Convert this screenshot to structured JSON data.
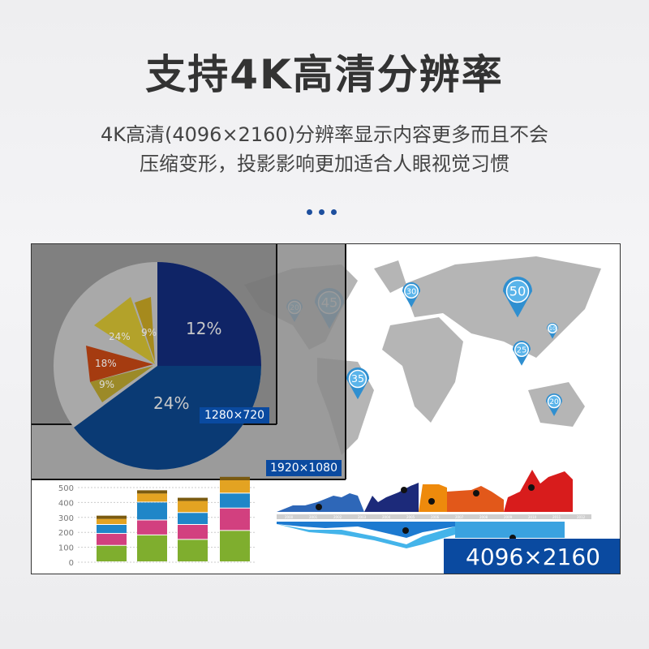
{
  "title": "支持4K高清分辨率",
  "subtitle": [
    "4K高清(4096×2160)分辨率显示内容更多而且不会",
    "压缩变形，投影影响更加适合人眼视觉习惯"
  ],
  "resolutions": {
    "r720": "1280×720",
    "r1080": "1920×1080",
    "r4k": "4096×2160"
  },
  "pie": {
    "labels": [
      "12%",
      "24%",
      "24%",
      "18%",
      "9%",
      "9%"
    ]
  },
  "map_pins": [
    "20",
    "45",
    "30",
    "50",
    "10",
    "25",
    "35",
    "20"
  ],
  "bar_chart": {
    "y_ticks": [
      "500",
      "400",
      "300",
      "200",
      "100",
      "0"
    ],
    "bars": [
      [
        110,
        80,
        60,
        40
      ],
      [
        180,
        100,
        120,
        60
      ],
      [
        150,
        100,
        80,
        80
      ],
      [
        210,
        150,
        100,
        90
      ]
    ],
    "colors": [
      "#7fae2e",
      "#d2407f",
      "#1f86c8",
      "#e3a322"
    ]
  },
  "timeline": {
    "years": [
      "2000",
      "2001",
      "2002",
      "2003",
      "2004",
      "2005",
      "2006",
      "2007",
      "2008",
      "2009",
      "2010",
      "2011",
      "2012"
    ]
  },
  "accent": "#0a4aa0"
}
